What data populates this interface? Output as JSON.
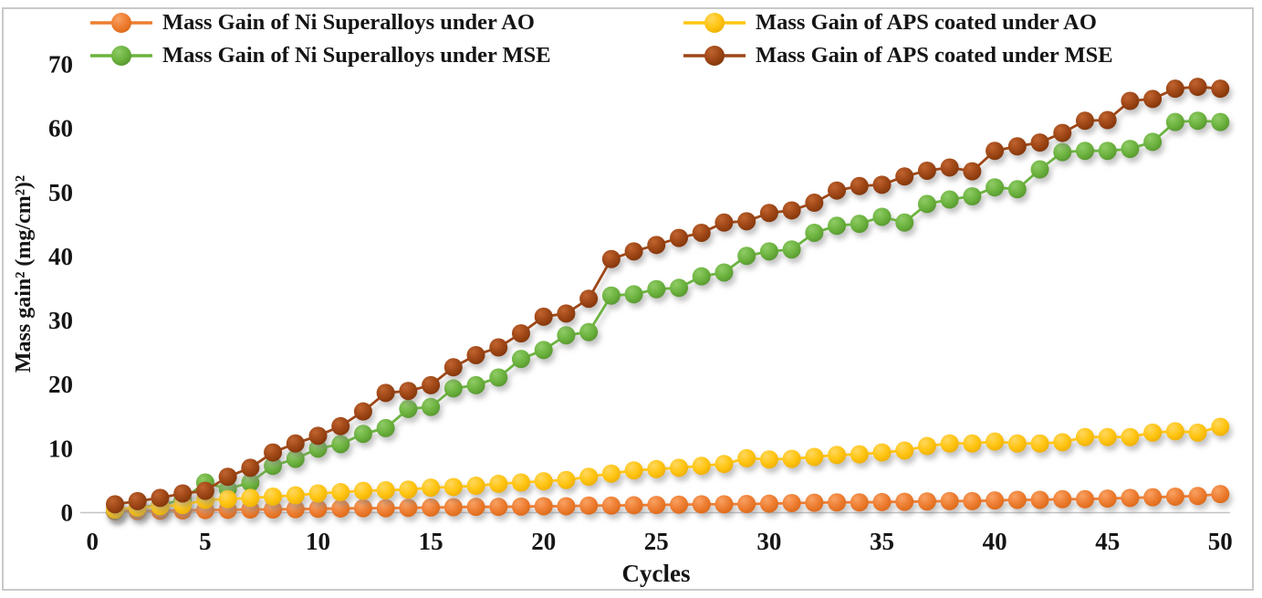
{
  "figure": {
    "background": "#ffffff",
    "border_color": "#c9c9c9",
    "axis_line_color": "#c3c3c3",
    "text_color": "#151515"
  },
  "chart_data": {
    "type": "line",
    "title": "",
    "xlabel": "Cycles",
    "ylabel": "Mass gain² (mg/cm²)²",
    "xlim": [
      0,
      50
    ],
    "ylim": [
      0,
      70
    ],
    "x_ticks": [
      0,
      5,
      10,
      15,
      20,
      25,
      30,
      35,
      40,
      45,
      50
    ],
    "y_ticks": [
      0,
      10,
      20,
      30,
      40,
      50,
      60,
      70
    ],
    "grid": false,
    "legend_position": "top",
    "x": [
      1,
      2,
      3,
      4,
      5,
      6,
      7,
      8,
      9,
      10,
      11,
      12,
      13,
      14,
      15,
      16,
      17,
      18,
      19,
      20,
      21,
      22,
      23,
      24,
      25,
      26,
      27,
      28,
      29,
      30,
      31,
      32,
      33,
      34,
      35,
      36,
      37,
      38,
      39,
      40,
      41,
      42,
      43,
      44,
      45,
      46,
      47,
      48,
      49,
      50
    ],
    "series": [
      {
        "name": "Mass Gain of Ni Superalloys under AO",
        "color": "#ED7D31",
        "color_light": "#F9A163",
        "color_dark": "#D96716",
        "values": [
          0.2,
          0.25,
          0.3,
          0.35,
          0.4,
          0.45,
          0.5,
          0.5,
          0.55,
          0.6,
          0.65,
          0.7,
          0.7,
          0.75,
          0.8,
          0.85,
          0.9,
          0.9,
          0.95,
          1.0,
          1.0,
          1.1,
          1.1,
          1.15,
          1.2,
          1.25,
          1.3,
          1.3,
          1.35,
          1.4,
          1.5,
          1.55,
          1.6,
          1.6,
          1.65,
          1.7,
          1.75,
          1.8,
          1.8,
          1.9,
          2.0,
          2.0,
          2.1,
          2.1,
          2.2,
          2.3,
          2.4,
          2.5,
          2.6,
          2.9
        ]
      },
      {
        "name": "Mass Gain of Ni Superalloys under MSE",
        "color": "#6CB33F",
        "color_light": "#8FCB66",
        "color_dark": "#55932C",
        "values": [
          0.4,
          0.8,
          1.2,
          2.0,
          4.7,
          3.7,
          4.7,
          7.3,
          8.4,
          10.0,
          10.7,
          12.3,
          13.2,
          16.2,
          16.5,
          19.4,
          19.9,
          21.1,
          24.0,
          25.4,
          27.7,
          28.2,
          33.9,
          34.1,
          34.9,
          35.1,
          36.9,
          37.5,
          40.1,
          40.8,
          41.1,
          43.7,
          44.8,
          45.1,
          46.2,
          45.3,
          48.2,
          48.9,
          49.4,
          50.8,
          50.5,
          53.6,
          56.3,
          56.5,
          56.5,
          56.8,
          57.9,
          61.0,
          61.2,
          61.0
        ]
      },
      {
        "name": "Mass Gain of APS coated under AO",
        "color": "#FFC512",
        "color_light": "#FFD75E",
        "color_dark": "#EBAC00",
        "values": [
          0.5,
          0.8,
          1.0,
          1.2,
          2.0,
          2.1,
          2.3,
          2.5,
          2.7,
          3.0,
          3.2,
          3.4,
          3.5,
          3.6,
          3.9,
          4.0,
          4.2,
          4.5,
          4.7,
          4.9,
          5.1,
          5.6,
          6.1,
          6.6,
          6.8,
          7.0,
          7.3,
          7.6,
          8.5,
          8.3,
          8.4,
          8.7,
          9.0,
          9.1,
          9.4,
          9.7,
          10.4,
          10.8,
          10.8,
          11.1,
          10.8,
          10.8,
          11.0,
          11.8,
          11.8,
          11.8,
          12.5,
          12.7,
          12.5,
          13.4
        ]
      },
      {
        "name": "Mass Gain of APS coated under MSE",
        "color": "#9E4616",
        "color_light": "#C06430",
        "color_dark": "#7E3408",
        "values": [
          1.3,
          1.8,
          2.3,
          3.0,
          3.4,
          5.6,
          7.0,
          9.4,
          10.8,
          12.0,
          13.5,
          15.8,
          18.7,
          19.0,
          19.9,
          22.7,
          24.6,
          25.8,
          28.0,
          30.6,
          31.1,
          33.4,
          39.6,
          40.8,
          41.8,
          42.9,
          43.7,
          45.3,
          45.5,
          46.8,
          47.2,
          48.4,
          50.3,
          51.0,
          51.2,
          52.5,
          53.4,
          53.9,
          53.3,
          56.5,
          57.2,
          57.8,
          59.3,
          61.2,
          61.3,
          64.3,
          64.6,
          66.2,
          66.5,
          66.2
        ]
      }
    ]
  }
}
